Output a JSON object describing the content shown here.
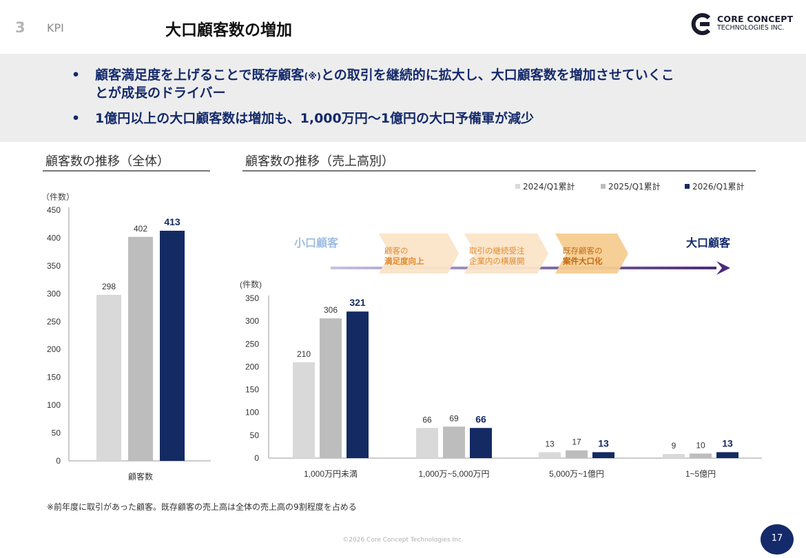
{
  "header": {
    "section_number": "3",
    "section_label": "KPI",
    "title": "大口顧客数の増加",
    "logo_line1": "CORE CONCEPT",
    "logo_line2": "TECHNOLOGIES INC."
  },
  "banner": {
    "bullet1_part1": "顧客満足度を上げることで既存顧客",
    "bullet1_note": "(※)",
    "bullet1_part2": "との取引を継続的に拡大し、大口顧客数を増加させていくこ",
    "bullet1_line2": "とが成長のドライバー",
    "bullet2": "1億円以上の大口顧客数は増加も、1,000万円～1億円の大口予備軍が減少"
  },
  "colors": {
    "bar_2024": "#d9d9d9",
    "bar_2025": "#bdbdbd",
    "bar_2026": "#132a63",
    "accent_navy": "#142a6b",
    "small_customer": "#9dbde3",
    "chevron": "#fbe4c8",
    "chevron_text": "#e08a2c",
    "arrow": "#4b2a7b"
  },
  "left_panel": {
    "title": "顧客数の推移（全体）"
  },
  "right_panel": {
    "title": "顧客数の推移（売上高別）",
    "legend": [
      "2024/Q1累計",
      "2025/Q1累計",
      "2026/Q1累計"
    ],
    "small_label": "小口顧客",
    "large_label": "大口顧客",
    "steps": [
      {
        "line1": "顧客の",
        "line2": "満足度向上"
      },
      {
        "line1": "取引の継続受注",
        "line2": "企業内の横展開"
      },
      {
        "line1": "既存顧客の",
        "line2": "案件大口化"
      }
    ]
  },
  "chart_data": [
    {
      "type": "bar",
      "title": "顧客数の推移（全体）",
      "unit_label": "（件数）",
      "categories": [
        "顧客数"
      ],
      "series": [
        {
          "name": "2024/Q1累計",
          "values": [
            298
          ]
        },
        {
          "name": "2025/Q1累計",
          "values": [
            402
          ]
        },
        {
          "name": "2026/Q1累計",
          "values": [
            413
          ]
        }
      ],
      "ylim": [
        0,
        450
      ],
      "yticks": [
        0,
        50,
        100,
        150,
        200,
        250,
        300,
        350,
        400,
        450
      ]
    },
    {
      "type": "bar",
      "title": "顧客数の推移（売上高別）",
      "unit_label": "(件数)",
      "categories": [
        "1,000万円未満",
        "1,000万~5,000万円",
        "5,000万~1億円",
        "1~5億円"
      ],
      "series": [
        {
          "name": "2024/Q1累計",
          "values": [
            210,
            66,
            13,
            9
          ]
        },
        {
          "name": "2025/Q1累計",
          "values": [
            306,
            69,
            17,
            10
          ]
        },
        {
          "name": "2026/Q1累計",
          "values": [
            321,
            66,
            13,
            13
          ]
        }
      ],
      "ylim": [
        0,
        350
      ],
      "yticks": [
        0,
        50,
        100,
        150,
        200,
        250,
        300,
        350
      ],
      "legend_position": "top-right"
    }
  ],
  "footnote": "※前年度に取引があった顧客。既存顧客の売上高は全体の売上高の9割程度を占める",
  "copyright": "©2026 Core Concept Technologies Inc.",
  "page_number": "17"
}
